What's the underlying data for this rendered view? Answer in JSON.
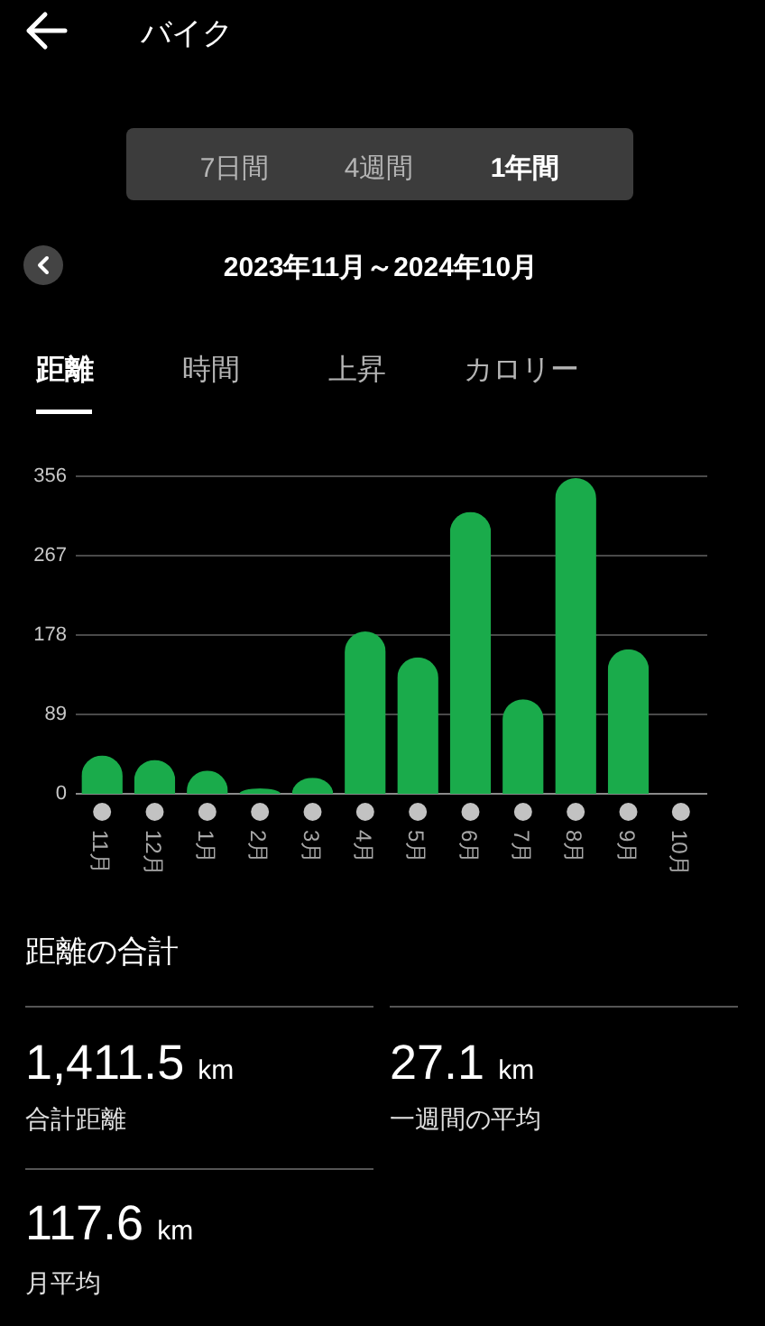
{
  "chart_data": {
    "type": "bar",
    "title": "バイク",
    "subtitle": "2023年11月～2024年10月",
    "categories": [
      "11月",
      "12月",
      "1月",
      "2月",
      "3月",
      "4月",
      "5月",
      "6月",
      "7月",
      "8月",
      "9月",
      "10月"
    ],
    "values": [
      43,
      38,
      26,
      6,
      18,
      182,
      153,
      316,
      106,
      354,
      162,
      0
    ],
    "color": "#1aab4b",
    "ylim": [
      0,
      356
    ],
    "yticks": [
      0,
      89,
      178,
      267,
      356
    ],
    "grid": "y",
    "annotations": [
      "7日間",
      "4週間",
      "1年間",
      "距離",
      "時間",
      "上昇",
      "カロリー",
      "距離の合計",
      "1,411.5 km",
      "合計距離",
      "27.1 km",
      "一週間の平均",
      "117.6 km",
      "月平均"
    ]
  }
}
